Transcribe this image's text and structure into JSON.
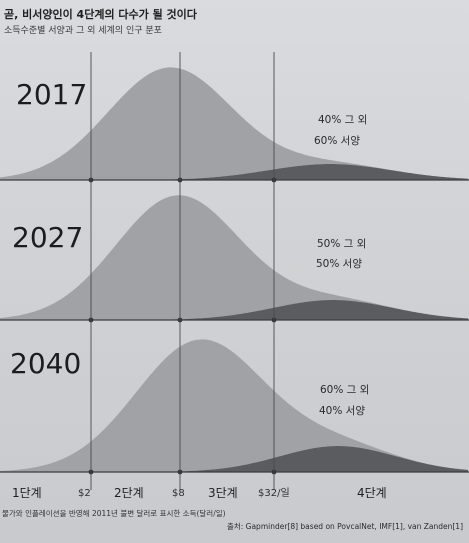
{
  "header": {
    "title": "곧, 비서양인이 4단계의 다수가 될 것이다",
    "subtitle": "소득수준별 서양과 그 외 세계의 인구 분포"
  },
  "chart_data": {
    "type": "area",
    "x_scale": "log",
    "x_ticks": [
      "$2",
      "$8",
      "$32/일"
    ],
    "stages": [
      "1단계",
      "2단계",
      "3단계",
      "4단계"
    ],
    "panels": [
      {
        "year": "2017",
        "rest_label": "40% 그 외",
        "west_label": "60% 서양"
      },
      {
        "year": "2027",
        "rest_label": "50% 그 외",
        "west_label": "50% 서양"
      },
      {
        "year": "2040",
        "rest_label": "60% 그 외",
        "west_label": "40% 서양"
      }
    ],
    "x_note": "물가와 인플레이션을 반영해 2011년 불변 달러로 표시한 소득(달러/일)",
    "source": "출처: Gapminder[8] based on PovcalNet, IMF[1], van Zanden[1]",
    "colors": {
      "rest": "#9d9fa3",
      "west": "#5b5c60",
      "background": "#d3d5d8"
    }
  }
}
